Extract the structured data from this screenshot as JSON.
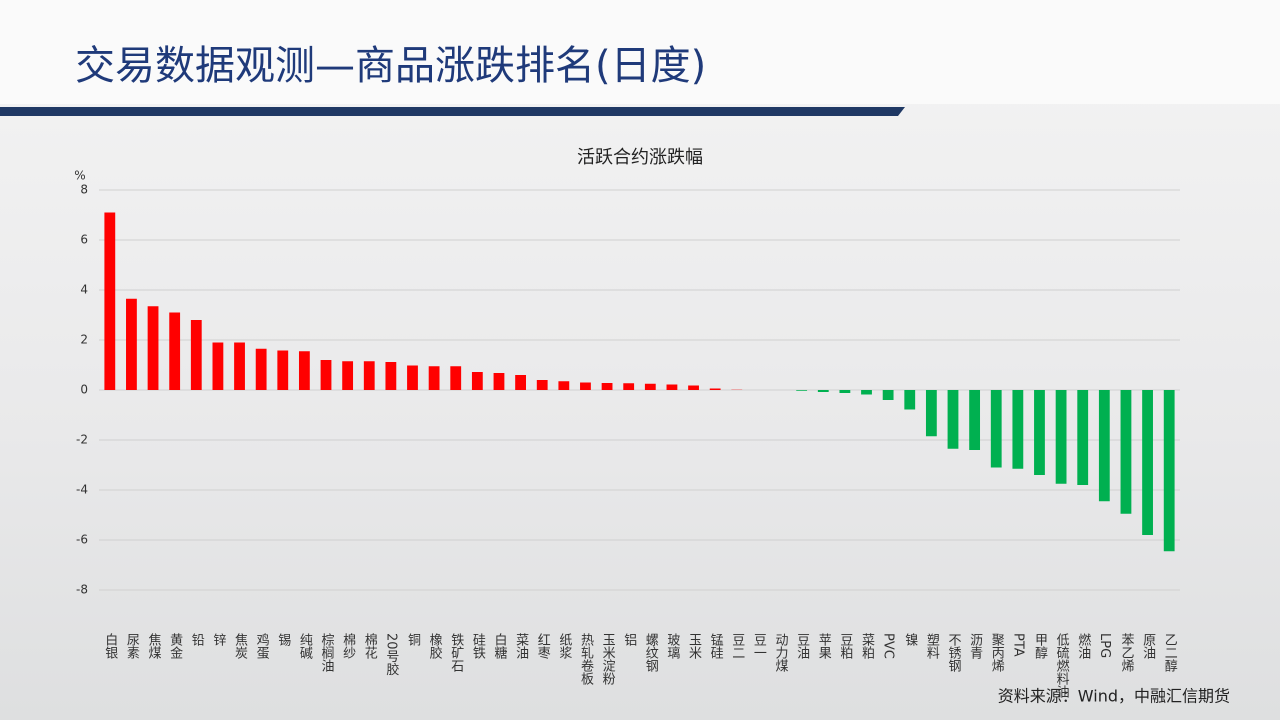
{
  "header": {
    "title": "交易数据观测—商品涨跌排名(日度)"
  },
  "chart_data": {
    "type": "bar",
    "title": "活跃合约涨跌幅",
    "y_unit": "%",
    "categories": [
      "白银",
      "尿素",
      "焦煤",
      "黄金",
      "铅",
      "锌",
      "焦炭",
      "鸡蛋",
      "锡",
      "纯碱",
      "棕榈油",
      "棉纱",
      "棉花",
      "20号胶",
      "铜",
      "橡胶",
      "铁矿石",
      "硅铁",
      "白糖",
      "菜油",
      "红枣",
      "纸浆",
      "热轧卷板",
      "玉米淀粉",
      "铝",
      "螺纹钢",
      "玻璃",
      "玉米",
      "锰硅",
      "豆二",
      "豆一",
      "动力煤",
      "豆油",
      "苹果",
      "豆粕",
      "菜粕",
      "PVC",
      "镍",
      "塑料",
      "不锈钢",
      "沥青",
      "聚丙烯",
      "PTA",
      "甲醇",
      "低硫燃料油",
      "燃油",
      "LPG",
      "苯乙烯",
      "原油",
      "乙二醇"
    ],
    "values": [
      7.1,
      3.65,
      3.35,
      3.1,
      2.8,
      1.9,
      1.9,
      1.65,
      1.58,
      1.55,
      1.2,
      1.15,
      1.15,
      1.12,
      0.98,
      0.95,
      0.95,
      0.72,
      0.68,
      0.6,
      0.4,
      0.35,
      0.3,
      0.28,
      0.27,
      0.25,
      0.22,
      0.18,
      0.06,
      0.01,
      0.0,
      0.0,
      -0.03,
      -0.08,
      -0.12,
      -0.18,
      -0.4,
      -0.78,
      -1.85,
      -2.35,
      -2.4,
      -3.1,
      -3.15,
      -3.4,
      -3.75,
      -3.8,
      -4.45,
      -4.95,
      -5.8,
      -6.45
    ],
    "positive_color": "#ff0000",
    "negative_color": "#00b050",
    "ylim": [
      -8,
      8
    ],
    "yticks": [
      -8,
      -6,
      -4,
      -2,
      0,
      2,
      4,
      6,
      8
    ],
    "grid": true
  },
  "footer": {
    "source": "资料来源：Wind，中融汇信期货"
  }
}
